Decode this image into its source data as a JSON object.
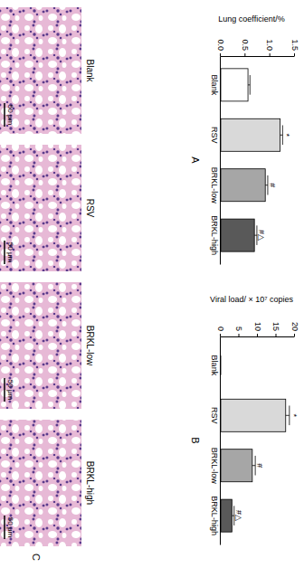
{
  "chart_data": [
    {
      "type": "bar",
      "panel_label": "A",
      "y_label": "Lung coefficient/%",
      "categories": [
        "Blank",
        "RSV",
        "BRKL-low",
        "BRKL-high"
      ],
      "values": [
        0.55,
        1.2,
        0.9,
        0.68
      ],
      "errors": [
        0.04,
        0.05,
        0.05,
        0.05
      ],
      "annotations": [
        null,
        "*",
        "#",
        "#△"
      ],
      "colors": [
        "#ffffff",
        "#d9d9d9",
        "#a6a6a6",
        "#595959"
      ],
      "ylim": [
        0,
        1.5
      ],
      "yticks": [
        {
          "value": 0,
          "label": "0.0"
        },
        {
          "value": 0.5,
          "label": "0.5"
        },
        {
          "value": 1,
          "label": "1.0"
        },
        {
          "value": 1.5,
          "label": "1.5"
        }
      ]
    },
    {
      "type": "bar",
      "panel_label": "B",
      "y_label": "Viral load/ × 10⁷ copies",
      "categories": [
        "Blank",
        "RSV",
        "BRKL-low",
        "BRKL-high"
      ],
      "values": [
        0,
        17.5,
        8.5,
        3
      ],
      "errors": [
        0,
        1,
        0.8,
        0.6
      ],
      "annotations": [
        null,
        "*",
        "#",
        "#△"
      ],
      "colors": [
        "#ffffff",
        "#d9d9d9",
        "#a6a6a6",
        "#595959"
      ],
      "ylim": [
        0,
        20
      ],
      "yticks": [
        0,
        5,
        10,
        15,
        20
      ]
    }
  ],
  "histology": {
    "panel_label": "C",
    "labels": [
      "Blank",
      "RSV",
      "BRKL-low",
      "BRKL-high"
    ],
    "scale_bar": "50 μm"
  }
}
